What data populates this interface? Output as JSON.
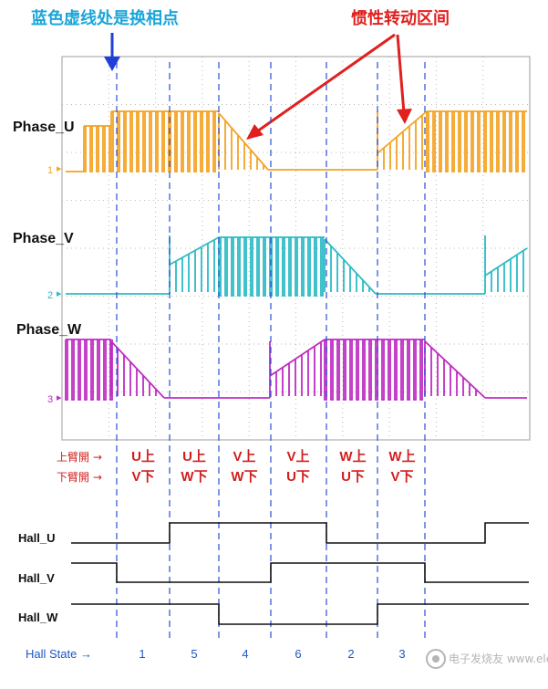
{
  "annotations": {
    "blue_note": "蓝色虚线处是换相点",
    "red_note": "惯性转动区间"
  },
  "phases": [
    {
      "name": "Phase_U",
      "marker": "1",
      "color": "#f4a323"
    },
    {
      "name": "Phase_V",
      "marker": "2",
      "color": "#2cbcc4"
    },
    {
      "name": "Phase_W",
      "marker": "3",
      "color": "#c02cc4"
    }
  ],
  "arm_labels": {
    "upper": "上臂開 →",
    "lower": "下臂開 →"
  },
  "arm_states": [
    {
      "upper": "U上",
      "lower": "V下"
    },
    {
      "upper": "U上",
      "lower": "W下"
    },
    {
      "upper": "V上",
      "lower": "W下"
    },
    {
      "upper": "V上",
      "lower": "U下"
    },
    {
      "upper": "W上",
      "lower": "U下"
    },
    {
      "upper": "W上",
      "lower": "V下"
    }
  ],
  "hall_signals": [
    "Hall_U",
    "Hall_V",
    "Hall_W"
  ],
  "hall_state_label": "Hall State →",
  "hall_states": [
    "1",
    "5",
    "4",
    "6",
    "2",
    "3"
  ],
  "watermark": "电子发烧友 www.elecfans.com",
  "colors": {
    "dashed_line": "#2a4fd6",
    "annotation_blue": "#1aa6d8",
    "annotation_red": "#e0201e",
    "grid": "#b9b9b9"
  }
}
